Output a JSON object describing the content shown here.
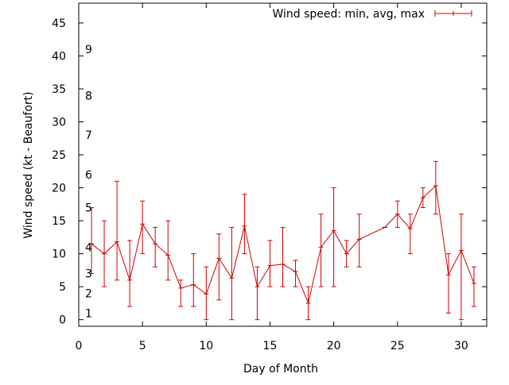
{
  "chart_data": {
    "type": "line",
    "title": "",
    "xlabel": "Day of Month",
    "ylabel": "Wind speed (kt - Beaufort)",
    "xlim": [
      0,
      32
    ],
    "ylim": [
      -1,
      48
    ],
    "x_ticks": [
      0,
      5,
      10,
      15,
      20,
      25,
      30
    ],
    "y_ticks": [
      0,
      5,
      10,
      15,
      20,
      25,
      30,
      35,
      40,
      45
    ],
    "grid": false,
    "legend_position": "top-right",
    "series_color": "#cc0000",
    "beaufort_scale": [
      {
        "label": "1",
        "y": 1
      },
      {
        "label": "2",
        "y": 4
      },
      {
        "label": "3",
        "y": 7
      },
      {
        "label": "4",
        "y": 11
      },
      {
        "label": "5",
        "y": 17
      },
      {
        "label": "6",
        "y": 22
      },
      {
        "label": "7",
        "y": 28
      },
      {
        "label": "8",
        "y": 34
      },
      {
        "label": "9",
        "y": 41
      }
    ],
    "series": [
      {
        "name": "Wind speed: min, avg, max",
        "points": [
          {
            "x": 1,
            "avg": 11.5,
            "min": 7,
            "max": 17
          },
          {
            "x": 2,
            "avg": 10,
            "min": 5,
            "max": 15
          },
          {
            "x": 3,
            "avg": 11.8,
            "min": 6,
            "max": 21
          },
          {
            "x": 4,
            "avg": 6,
            "min": 2,
            "max": 12
          },
          {
            "x": 5,
            "avg": 14.5,
            "min": 10,
            "max": 18
          },
          {
            "x": 6,
            "avg": 11.5,
            "min": 8,
            "max": 14
          },
          {
            "x": 7,
            "avg": 9.8,
            "min": 6,
            "max": 15
          },
          {
            "x": 8,
            "avg": 4.8,
            "min": 2,
            "max": 6
          },
          {
            "x": 9,
            "avg": 5.3,
            "min": 2,
            "max": 10
          },
          {
            "x": 10,
            "avg": 3.9,
            "min": 0,
            "max": 8
          },
          {
            "x": 11,
            "avg": 9.3,
            "min": 3,
            "max": 13
          },
          {
            "x": 12,
            "avg": 6.3,
            "min": 0,
            "max": 14
          },
          {
            "x": 13,
            "avg": 14.2,
            "min": 10,
            "max": 19
          },
          {
            "x": 14,
            "avg": 5,
            "min": 0,
            "max": 8
          },
          {
            "x": 15,
            "avg": 8.2,
            "min": 5,
            "max": 12
          },
          {
            "x": 16,
            "avg": 8.4,
            "min": 5,
            "max": 14
          },
          {
            "x": 17,
            "avg": 7.3,
            "min": 5,
            "max": 9
          },
          {
            "x": 18,
            "avg": 2.5,
            "min": 0,
            "max": 5
          },
          {
            "x": 19,
            "avg": 11,
            "min": 5,
            "max": 16
          },
          {
            "x": 20,
            "avg": 13.5,
            "min": 5,
            "max": 20
          },
          {
            "x": 21,
            "avg": 10,
            "min": 8,
            "max": 12
          },
          {
            "x": 22,
            "avg": 12.2,
            "min": 8,
            "max": 16
          },
          {
            "x": 24,
            "avg": 14,
            "min": 14,
            "max": 14
          },
          {
            "x": 25,
            "avg": 16,
            "min": 14,
            "max": 18
          },
          {
            "x": 26,
            "avg": 13.8,
            "min": 10,
            "max": 16
          },
          {
            "x": 27,
            "avg": 18.5,
            "min": 17,
            "max": 20
          },
          {
            "x": 28,
            "avg": 20.3,
            "min": 16,
            "max": 24
          },
          {
            "x": 29,
            "avg": 6.8,
            "min": 1,
            "max": 10
          },
          {
            "x": 30,
            "avg": 10.5,
            "min": 0,
            "max": 16
          },
          {
            "x": 31,
            "avg": 5.5,
            "min": 2,
            "max": 8
          }
        ]
      }
    ]
  }
}
